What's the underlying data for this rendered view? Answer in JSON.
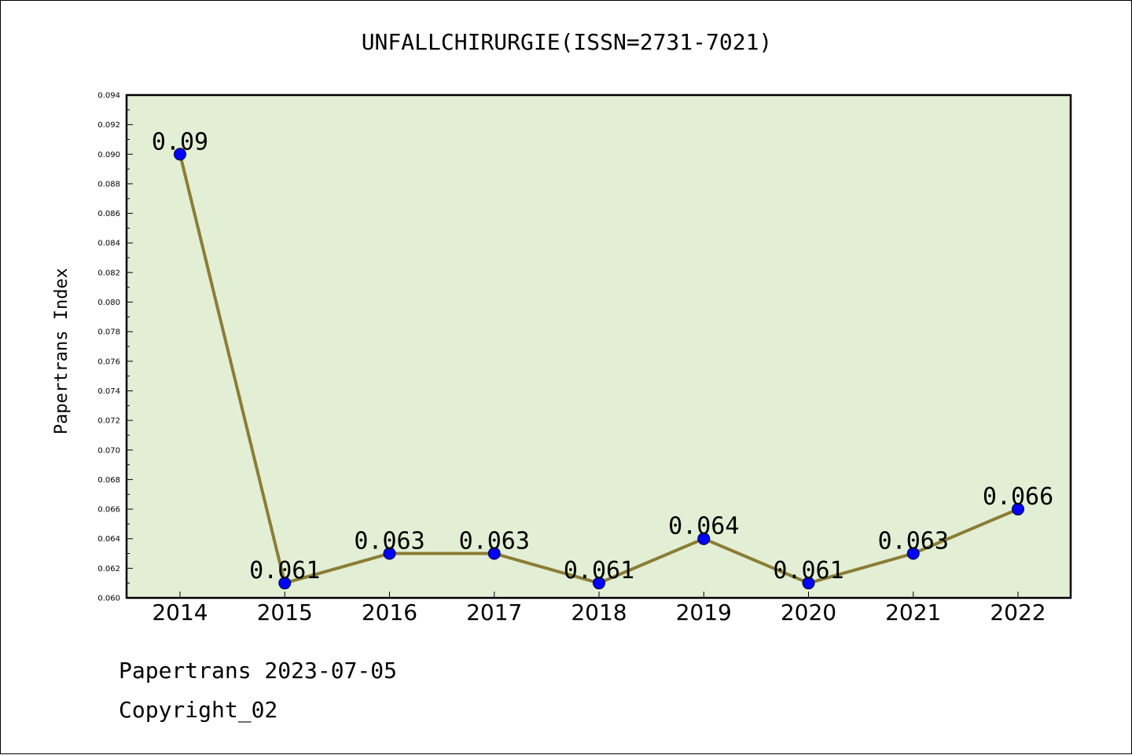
{
  "chart_data": {
    "type": "line",
    "title": "UNFALLCHIRURGIE(ISSN=2731-7021)",
    "xlabel": "",
    "ylabel": "Papertrans Index",
    "categories": [
      "2014",
      "2015",
      "2016",
      "2017",
      "2018",
      "2019",
      "2020",
      "2021",
      "2022"
    ],
    "series": [
      {
        "values": [
          0.09,
          0.061,
          0.063,
          0.063,
          0.061,
          0.064,
          0.061,
          0.063,
          0.066
        ]
      }
    ],
    "data_labels": [
      "0.09",
      "0.061",
      "0.063",
      "0.063",
      "0.061",
      "0.064",
      "0.061",
      "0.063",
      "0.066"
    ],
    "ylim": [
      0.06,
      0.094
    ],
    "yticks": [
      "0.060",
      "0.062",
      "0.064",
      "0.066",
      "0.068",
      "0.070",
      "0.072",
      "0.074",
      "0.076",
      "0.078",
      "0.080",
      "0.082",
      "0.084",
      "0.086",
      "0.088",
      "0.090",
      "0.092",
      "0.094"
    ],
    "grid": false,
    "legend": "none",
    "colors": {
      "plot_bg": "#e2efd5",
      "line": "#8b7d35",
      "marker": "#0000ff"
    }
  },
  "footer": {
    "line1": "Papertrans 2023-07-05",
    "line2": "Copyright_02"
  }
}
